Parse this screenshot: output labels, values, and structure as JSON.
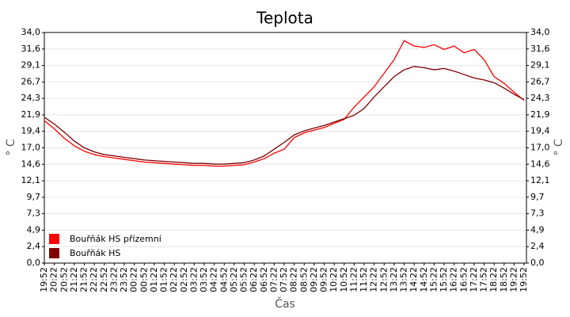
{
  "chart_data": {
    "type": "line",
    "title": "Teplota",
    "x_label": "Čas",
    "y_label": "° C",
    "categories": [
      "19:52",
      "20:22",
      "20:52",
      "21:22",
      "21:52",
      "22:22",
      "22:52",
      "23:22",
      "23:52",
      "00:22",
      "00:52",
      "01:22",
      "01:52",
      "02:22",
      "02:52",
      "03:22",
      "03:52",
      "04:22",
      "04:52",
      "05:22",
      "05:52",
      "06:22",
      "06:52",
      "07:22",
      "07:52",
      "08:22",
      "08:52",
      "09:22",
      "09:52",
      "10:22",
      "10:52",
      "11:22",
      "11:52",
      "12:22",
      "12:52",
      "13:22",
      "13:52",
      "14:22",
      "14:52",
      "15:22",
      "15:52",
      "16:22",
      "16:52",
      "17:22",
      "17:52",
      "18:22",
      "18:52",
      "19:22",
      "19:52"
    ],
    "series": [
      {
        "name": "Bouřňák HS přízemní",
        "color": "#ff0000",
        "values": [
          21.0,
          19.8,
          18.4,
          17.3,
          16.5,
          16.0,
          15.7,
          15.5,
          15.3,
          15.1,
          14.9,
          14.8,
          14.7,
          14.6,
          14.5,
          14.4,
          14.4,
          14.3,
          14.3,
          14.4,
          14.5,
          14.9,
          15.4,
          16.2,
          16.8,
          18.5,
          19.2,
          19.6,
          20.0,
          20.6,
          21.2,
          23.0,
          24.5,
          26.0,
          28.0,
          30.0,
          32.8,
          32.0,
          31.8,
          32.2,
          31.5,
          32.0,
          31.0,
          31.5,
          30.0,
          27.5,
          26.5,
          25.2,
          24.0
        ]
      },
      {
        "name": "Bouřňák HS",
        "color": "#800000",
        "values": [
          21.5,
          20.5,
          19.3,
          18.0,
          17.0,
          16.4,
          16.0,
          15.8,
          15.6,
          15.4,
          15.2,
          15.1,
          15.0,
          14.9,
          14.8,
          14.7,
          14.7,
          14.6,
          14.6,
          14.7,
          14.8,
          15.2,
          15.8,
          16.8,
          17.8,
          18.9,
          19.5,
          19.9,
          20.3,
          20.8,
          21.3,
          21.8,
          22.8,
          24.5,
          26.0,
          27.5,
          28.5,
          29.0,
          28.8,
          28.5,
          28.7,
          28.3,
          27.8,
          27.3,
          27.0,
          26.6,
          25.8,
          24.9,
          24.1
        ]
      }
    ],
    "ylim": [
      0,
      34
    ],
    "yticks": [
      {
        "value": 0,
        "label": "0,0"
      },
      {
        "value": 2.43,
        "label": "2,4"
      },
      {
        "value": 4.86,
        "label": "4,9"
      },
      {
        "value": 7.29,
        "label": "7,3"
      },
      {
        "value": 9.71,
        "label": "9,7"
      },
      {
        "value": 12.14,
        "label": "12,1"
      },
      {
        "value": 14.57,
        "label": "14,6"
      },
      {
        "value": 17,
        "label": "17,0"
      },
      {
        "value": 19.43,
        "label": "19,4"
      },
      {
        "value": 21.86,
        "label": "21,9"
      },
      {
        "value": 24.29,
        "label": "24,3"
      },
      {
        "value": 26.71,
        "label": "26,7"
      },
      {
        "value": 29.14,
        "label": "29,1"
      },
      {
        "value": 31.57,
        "label": "31,6"
      },
      {
        "value": 34,
        "label": "34,0"
      }
    ],
    "grid": true,
    "legend": "lower left"
  }
}
